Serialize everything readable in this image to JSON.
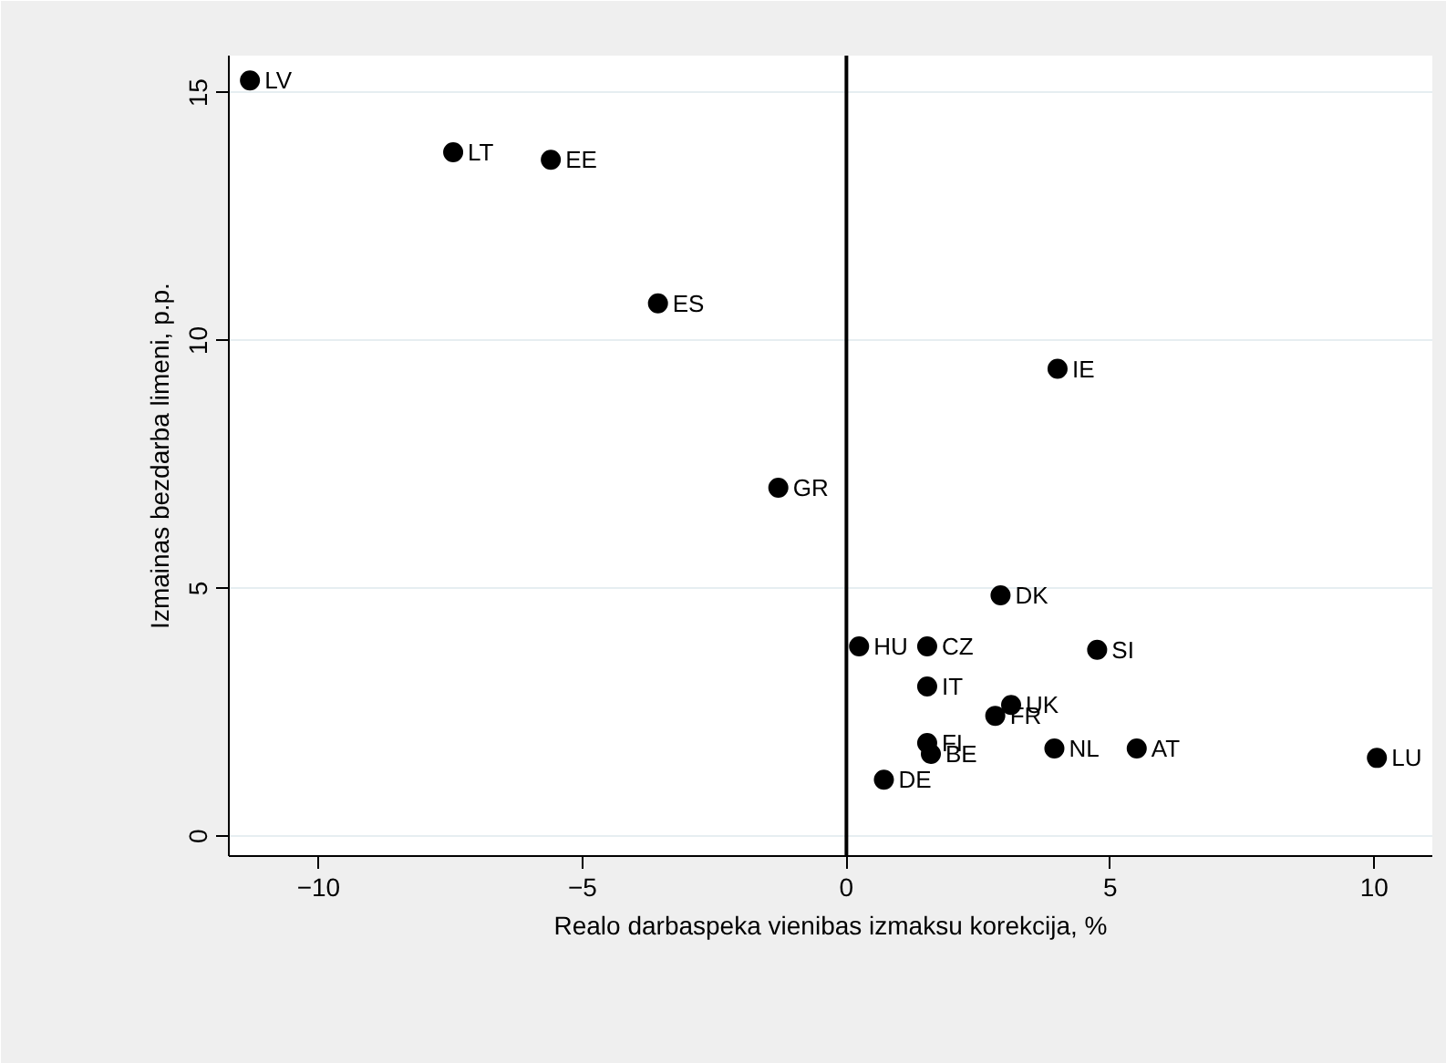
{
  "chart_data": {
    "type": "scatter",
    "xlabel": "Realo darbaspeka vienibas izmaksu korekcija, %",
    "ylabel": "Izmainas bezdarba limeni, p.p.",
    "xlim": [
      -11.7,
      11.1
    ],
    "ylim": [
      -0.4,
      15.75
    ],
    "xticks": [
      -10,
      -5,
      0,
      5,
      10
    ],
    "yticks": [
      0,
      5,
      10,
      15
    ],
    "grid": "y",
    "marker": "circle",
    "series": [
      {
        "color": "#000000",
        "x": [
          -11.3,
          -7.45,
          -5.6,
          -3.57,
          -1.29,
          4.0,
          2.92,
          0.24,
          1.53,
          4.75,
          1.53,
          3.12,
          2.82,
          1.53,
          1.6,
          3.94,
          5.5,
          10.05,
          0.71
        ],
        "values": [
          15.25,
          13.8,
          13.65,
          10.75,
          7.03,
          9.43,
          4.86,
          3.83,
          3.83,
          3.76,
          3.02,
          2.65,
          2.43,
          1.88,
          1.66,
          1.77,
          1.77,
          1.58,
          1.14
        ]
      }
    ],
    "ref_lines": [
      {
        "axis": "x",
        "value": 0,
        "color": "#000000"
      }
    ],
    "annotations": [
      {
        "text": "LV",
        "x": -11.3,
        "y": 15.25
      },
      {
        "text": "LT",
        "x": -7.45,
        "y": 13.8
      },
      {
        "text": "EE",
        "x": -5.6,
        "y": 13.65
      },
      {
        "text": "ES",
        "x": -3.57,
        "y": 10.75
      },
      {
        "text": "GR",
        "x": -1.29,
        "y": 7.03
      },
      {
        "text": "IE",
        "x": 4.0,
        "y": 9.43
      },
      {
        "text": "DK",
        "x": 2.92,
        "y": 4.86
      },
      {
        "text": "HU",
        "x": 0.24,
        "y": 3.83
      },
      {
        "text": "CZ",
        "x": 1.53,
        "y": 3.83
      },
      {
        "text": "SI",
        "x": 4.75,
        "y": 3.76
      },
      {
        "text": "IT",
        "x": 1.53,
        "y": 3.02
      },
      {
        "text": "UK",
        "x": 3.12,
        "y": 2.65
      },
      {
        "text": "FR",
        "x": 2.82,
        "y": 2.43
      },
      {
        "text": "FI",
        "x": 1.53,
        "y": 1.88
      },
      {
        "text": "BE",
        "x": 1.6,
        "y": 1.66
      },
      {
        "text": "NL",
        "x": 3.94,
        "y": 1.77
      },
      {
        "text": "AT",
        "x": 5.5,
        "y": 1.77
      },
      {
        "text": "LU",
        "x": 10.05,
        "y": 1.58
      },
      {
        "text": "DE",
        "x": 0.71,
        "y": 1.14
      }
    ]
  }
}
